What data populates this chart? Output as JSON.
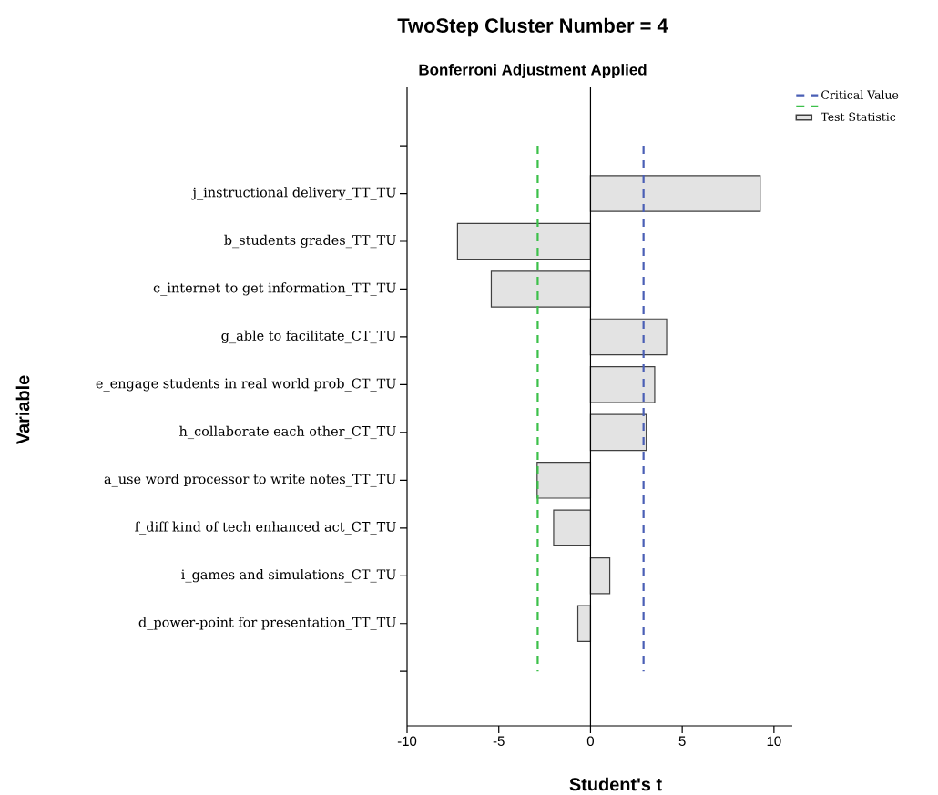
{
  "chart_data": {
    "type": "bar",
    "orientation": "horizontal",
    "title": "TwoStep Cluster Number = 4",
    "subtitle": "Bonferroni Adjustment Applied",
    "xlabel": "Student's t",
    "ylabel": "Variable",
    "categories": [
      null,
      "j_instructional delivery_TT_TU",
      "b_students grades_TT_TU",
      "c_internet to get information_TT_TU",
      "g_able to facilitate_CT_TU",
      "e_engage students in real world prob_CT_TU",
      "h_collaborate each other_CT_TU",
      "a_use word processor to write notes_TT_TU",
      "f_diff kind of tech enhanced act_CT_TU",
      "i_games and simulations_CT_TU",
      "d_power-point for presentation_TT_TU",
      null
    ],
    "series": [
      {
        "name": "Test Statistic",
        "color": "#e3e3e3",
        "values": [
          null,
          9.25,
          -7.25,
          -5.41,
          4.15,
          3.5,
          3.04,
          -2.91,
          -2.01,
          1.05,
          -0.69,
          null
        ]
      }
    ],
    "xlim": [
      -10,
      11
    ],
    "xticks": [
      -10,
      -5,
      0,
      5,
      10
    ],
    "ref_lines": [
      {
        "axis": "x",
        "value": 2.89,
        "label": "Critical Value",
        "color": "#4a5fb5",
        "line_style": "dashed"
      },
      {
        "axis": "x",
        "value": -2.88,
        "color": "#3cc04a",
        "line_style": "dashed"
      }
    ],
    "legend": "top right"
  }
}
